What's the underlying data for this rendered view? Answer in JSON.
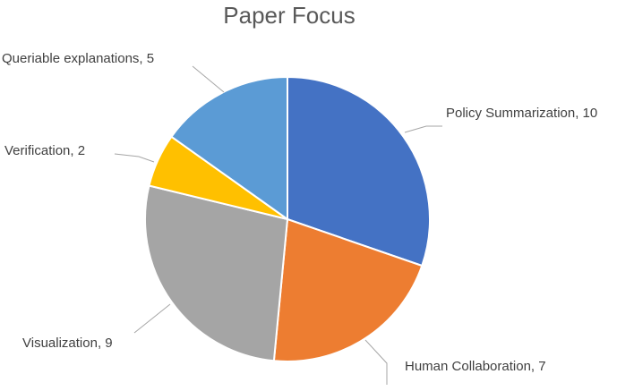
{
  "chart_data": {
    "type": "pie",
    "title": "Paper Focus",
    "slices": [
      {
        "label": "Policy Summarization",
        "value": 10,
        "color": "#4472C4",
        "text": "Policy Summarization, 10"
      },
      {
        "label": "Human Collaboration",
        "value": 7,
        "color": "#ED7D31",
        "text": "Human Collaboration, 7"
      },
      {
        "label": "Visualization",
        "value": 9,
        "color": "#A5A5A5",
        "text": "Visualization, 9"
      },
      {
        "label": "Verification",
        "value": 2,
        "color": "#FFC000",
        "text": "Verification, 2"
      },
      {
        "label": "Queriable explanations",
        "value": 5,
        "color": "#5B9BD5",
        "text": "Queriable explanations, 5"
      }
    ],
    "legend": "none",
    "data_labels": "outside-with-leader-lines"
  }
}
